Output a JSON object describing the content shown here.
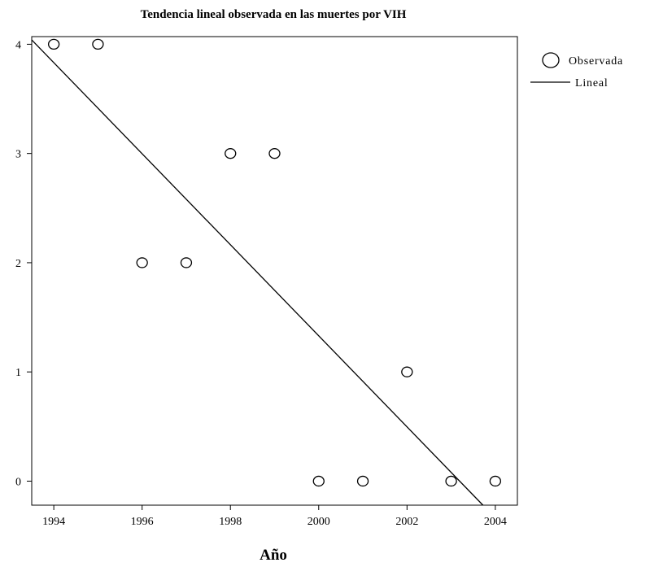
{
  "chart_data": {
    "type": "scatter",
    "title": "Tendencia lineal observada en las muertes por VIH",
    "xlabel": "Año",
    "ylabel": "",
    "xlim": [
      1993.5,
      2004.5
    ],
    "ylim": [
      -0.22,
      4.07
    ],
    "xticks": [
      1994,
      1996,
      1998,
      2000,
      2002,
      2004
    ],
    "yticks": [
      0,
      1,
      2,
      3,
      4
    ],
    "grid": false,
    "legend_position": "right",
    "series": [
      {
        "name": "Observada",
        "kind": "points",
        "marker": "open-circle",
        "x": [
          1994,
          1995,
          1996,
          1997,
          1998,
          1999,
          2000,
          2001,
          2002,
          2003,
          2004
        ],
        "y": [
          4,
          4,
          2,
          2,
          3,
          3,
          0,
          0,
          1,
          0,
          0
        ]
      },
      {
        "name": "Lineal",
        "kind": "line",
        "x": [
          1993.5,
          2003.72
        ],
        "y": [
          4.04,
          -0.22
        ]
      }
    ],
    "colors": {
      "marks": "#000000",
      "background": "#ffffff"
    }
  }
}
